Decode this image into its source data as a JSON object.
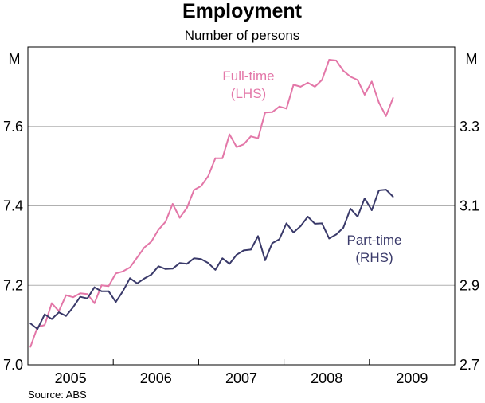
{
  "chart_data": {
    "type": "line",
    "title": "Employment",
    "subtitle": "Number of persons",
    "y_unit_left": "M",
    "y_unit_right": "M",
    "left_axis": {
      "ylim": [
        7.0,
        7.8
      ],
      "ticks": [
        "7.0",
        "7.2",
        "7.4",
        "7.6"
      ],
      "tick_values": [
        7.0,
        7.2,
        7.4,
        7.6
      ]
    },
    "right_axis": {
      "ylim": [
        2.7,
        3.5
      ],
      "ticks": [
        "2.7",
        "2.9",
        "3.1",
        "3.3"
      ],
      "tick_values": [
        2.7,
        2.9,
        3.1,
        3.3
      ]
    },
    "x_axis": {
      "xlim": [
        2004.5,
        2009.5
      ],
      "year_labels": [
        "2005",
        "2006",
        "2007",
        "2008",
        "2009"
      ],
      "year_label_positions": [
        2005.0,
        2006.0,
        2007.0,
        2008.0,
        2009.0
      ],
      "boundaries": [
        2005.5,
        2006.5,
        2007.5,
        2008.5
      ]
    },
    "grid": true,
    "series": [
      {
        "name": "Full-time",
        "axis_label": "(LHS)",
        "axis": "left",
        "color": "#e377a8",
        "start": 2004.53,
        "step": 0.0833,
        "values": [
          7.045,
          7.095,
          7.1,
          7.155,
          7.135,
          7.175,
          7.17,
          7.18,
          7.178,
          7.155,
          7.2,
          7.198,
          7.23,
          7.235,
          7.245,
          7.27,
          7.295,
          7.31,
          7.34,
          7.36,
          7.405,
          7.37,
          7.395,
          7.44,
          7.45,
          7.475,
          7.52,
          7.52,
          7.58,
          7.548,
          7.555,
          7.575,
          7.57,
          7.635,
          7.636,
          7.65,
          7.645,
          7.705,
          7.7,
          7.71,
          7.7,
          7.717,
          7.768,
          7.766,
          7.74,
          7.725,
          7.717,
          7.68,
          7.713,
          7.66,
          7.626,
          7.672
        ]
      },
      {
        "name": "Part-time",
        "axis_label": "(RHS)",
        "axis": "right",
        "color": "#3a3a6a",
        "start": 2004.53,
        "step": 0.0833,
        "values": [
          2.804,
          2.79,
          2.827,
          2.815,
          2.832,
          2.823,
          2.845,
          2.871,
          2.867,
          2.895,
          2.885,
          2.885,
          2.858,
          2.885,
          2.918,
          2.905,
          2.917,
          2.927,
          2.948,
          2.941,
          2.942,
          2.956,
          2.954,
          2.968,
          2.966,
          2.956,
          2.939,
          2.968,
          2.954,
          2.977,
          2.988,
          2.99,
          3.024,
          2.963,
          3.006,
          3.016,
          3.056,
          3.033,
          3.049,
          3.073,
          3.055,
          3.056,
          3.018,
          3.028,
          3.045,
          3.093,
          3.073,
          3.119,
          3.089,
          3.139,
          3.141,
          3.123
        ]
      }
    ],
    "source": "Source: ABS"
  }
}
